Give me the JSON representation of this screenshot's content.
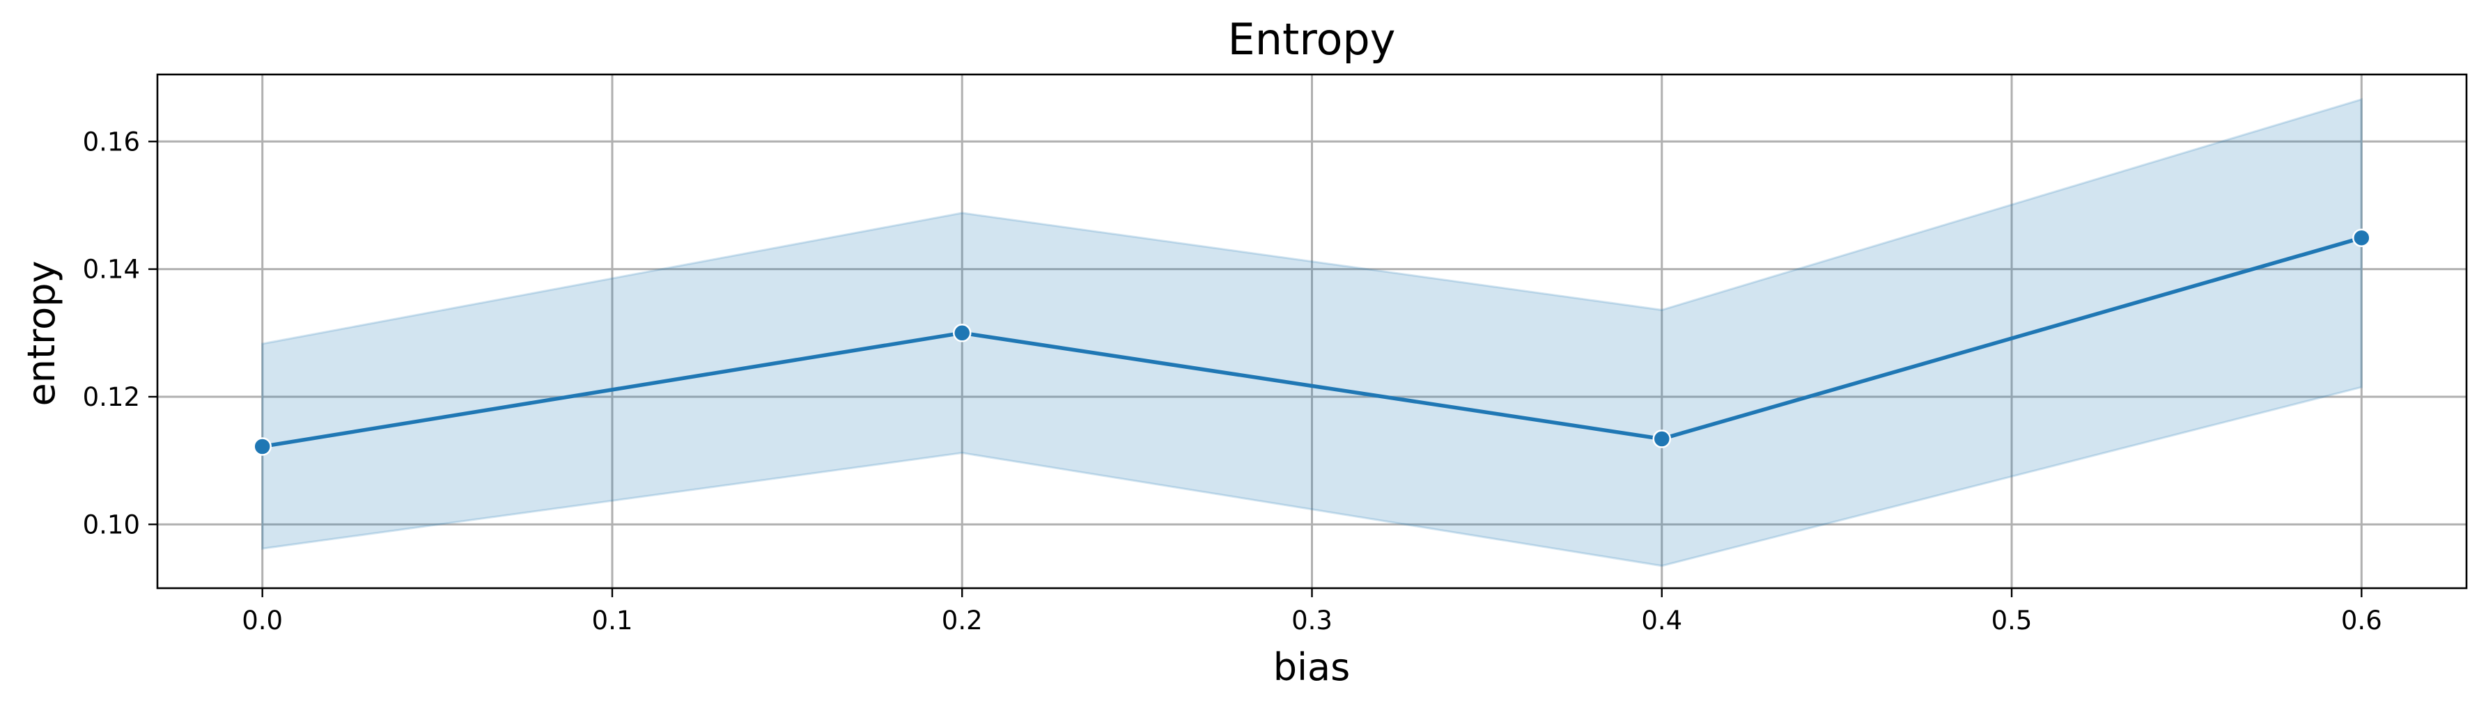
{
  "chart_data": {
    "type": "line",
    "title": "Entropy",
    "xlabel": "bias",
    "ylabel": "entropy",
    "xlim": [
      -0.03,
      0.63
    ],
    "ylim": [
      0.09,
      0.1705
    ],
    "xticks": [
      0.0,
      0.1,
      0.2,
      0.3,
      0.4,
      0.5,
      0.6
    ],
    "xtick_labels": [
      "0.0",
      "0.1",
      "0.2",
      "0.3",
      "0.4",
      "0.5",
      "0.6"
    ],
    "yticks": [
      0.1,
      0.12,
      0.14,
      0.16
    ],
    "ytick_labels": [
      "0.10",
      "0.12",
      "0.14",
      "0.16"
    ],
    "grid": true,
    "legend": "none",
    "series": [
      {
        "x": [
          0.0,
          0.2,
          0.4,
          0.6
        ],
        "y": [
          0.1122,
          0.13,
          0.1134,
          0.1449
        ],
        "ci_lower": [
          0.0962,
          0.1112,
          0.0935,
          0.1215
        ],
        "ci_upper": [
          0.1283,
          0.1488,
          0.1336,
          0.1666
        ],
        "color": "#1f77b4",
        "band_color": "#1f77b4",
        "marker": "circle"
      }
    ]
  }
}
